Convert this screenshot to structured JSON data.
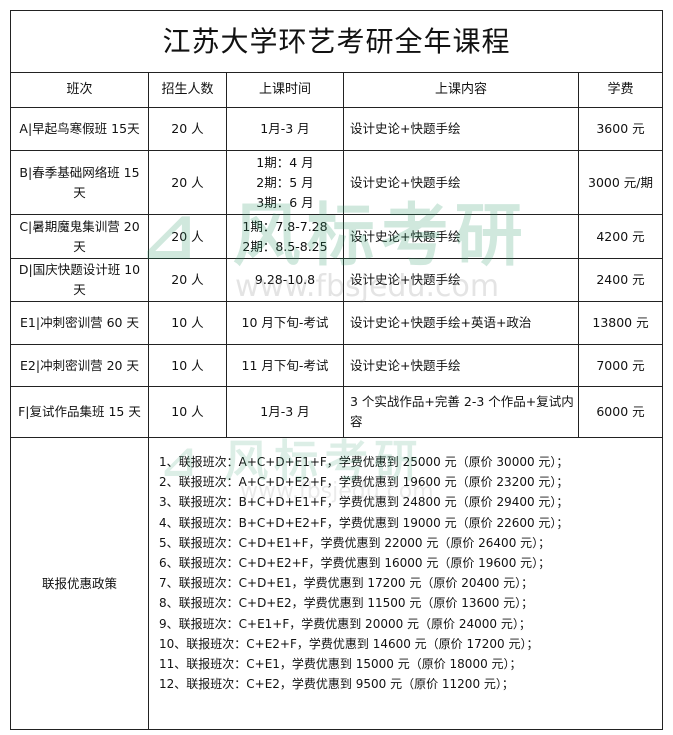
{
  "title": "江苏大学环艺考研全年课程",
  "headers": [
    "班次",
    "招生人数",
    "上课时间",
    "上课内容",
    "学费"
  ],
  "rows": [
    {
      "cls": "A|早起鸟寒假班 15天",
      "count": "20 人",
      "time": "1月-3 月",
      "content": "设计史论+快题手绘",
      "fee": "3600 元"
    },
    {
      "cls": "B|春季基础网络班 15 天",
      "count": "20 人",
      "time": "1期：4 月\n2期：5 月\n3期：6 月",
      "content": "设计史论+快题手绘",
      "fee": "3000 元/期"
    },
    {
      "cls": "C|暑期魔鬼集训营 20 天",
      "count": "20 人",
      "time": "1期：7.8-7.28\n2期：8.5-8.25",
      "content": "设计史论+快题手绘",
      "fee": "4200 元"
    },
    {
      "cls": "D|国庆快题设计班 10 天",
      "count": "20 人",
      "time": "9.28-10.8",
      "content": "设计史论+快题手绘",
      "fee": "2400 元"
    },
    {
      "cls": "E1|冲刺密训营 60 天",
      "count": "10 人",
      "time": "10 月下旬-考试",
      "content": "设计史论+快题手绘+英语+政治",
      "fee": "13800 元"
    },
    {
      "cls": "E2|冲刺密训营 20 天",
      "count": "10 人",
      "time": "11 月下旬-考试",
      "content": "设计史论+快题手绘",
      "fee": "7000 元"
    },
    {
      "cls": "F|复试作品集班 15 天",
      "count": "10 人",
      "time": "1月-3 月",
      "content": "3 个实战作品+完善 2-3 个作品+复试内容",
      "fee": "6000 元"
    }
  ],
  "combo": {
    "label": "联报优惠政策",
    "items": [
      "1、联报班次：A+C+D+E1+F，学费优惠到 25000 元（原价 30000 元）；",
      "2、联报班次：A+C+D+E2+F，学费优惠到 19600 元（原价 23200 元）；",
      "3、联报班次：B+C+D+E1+F，学费优惠到 24800 元（原价 29400 元）；",
      "4、联报班次：B+C+D+E2+F，学费优惠到 19000 元（原价 22600 元）；",
      "5、联报班次：C+D+E1+F，学费优惠到 22000 元（原价 26400 元）；",
      "6、联报班次：C+D+E2+F，学费优惠到 16000 元（原价 19600 元）；",
      "7、联报班次：C+D+E1，学费优惠到 17200 元（原价 20400 元）；",
      "8、联报班次：C+D+E2，学费优惠到 11500 元（原价 13600 元）；",
      "9、联报班次：C+E1+F，学费优惠到 20000 元（原价 24000 元）；",
      "10、联报班次：C+E2+F，学费优惠到 14600 元（原价 17200 元）；",
      "11、联报班次：C+E1，学费优惠到 15000 元（原价 18000 元）；",
      "12、联报班次：C+E2，学费优惠到 9500 元（原价 11200 元）；"
    ]
  },
  "watermark": {
    "logo_text": "风标考研",
    "url": "www.fbsjedu.com",
    "color": "#2e9a6a"
  }
}
